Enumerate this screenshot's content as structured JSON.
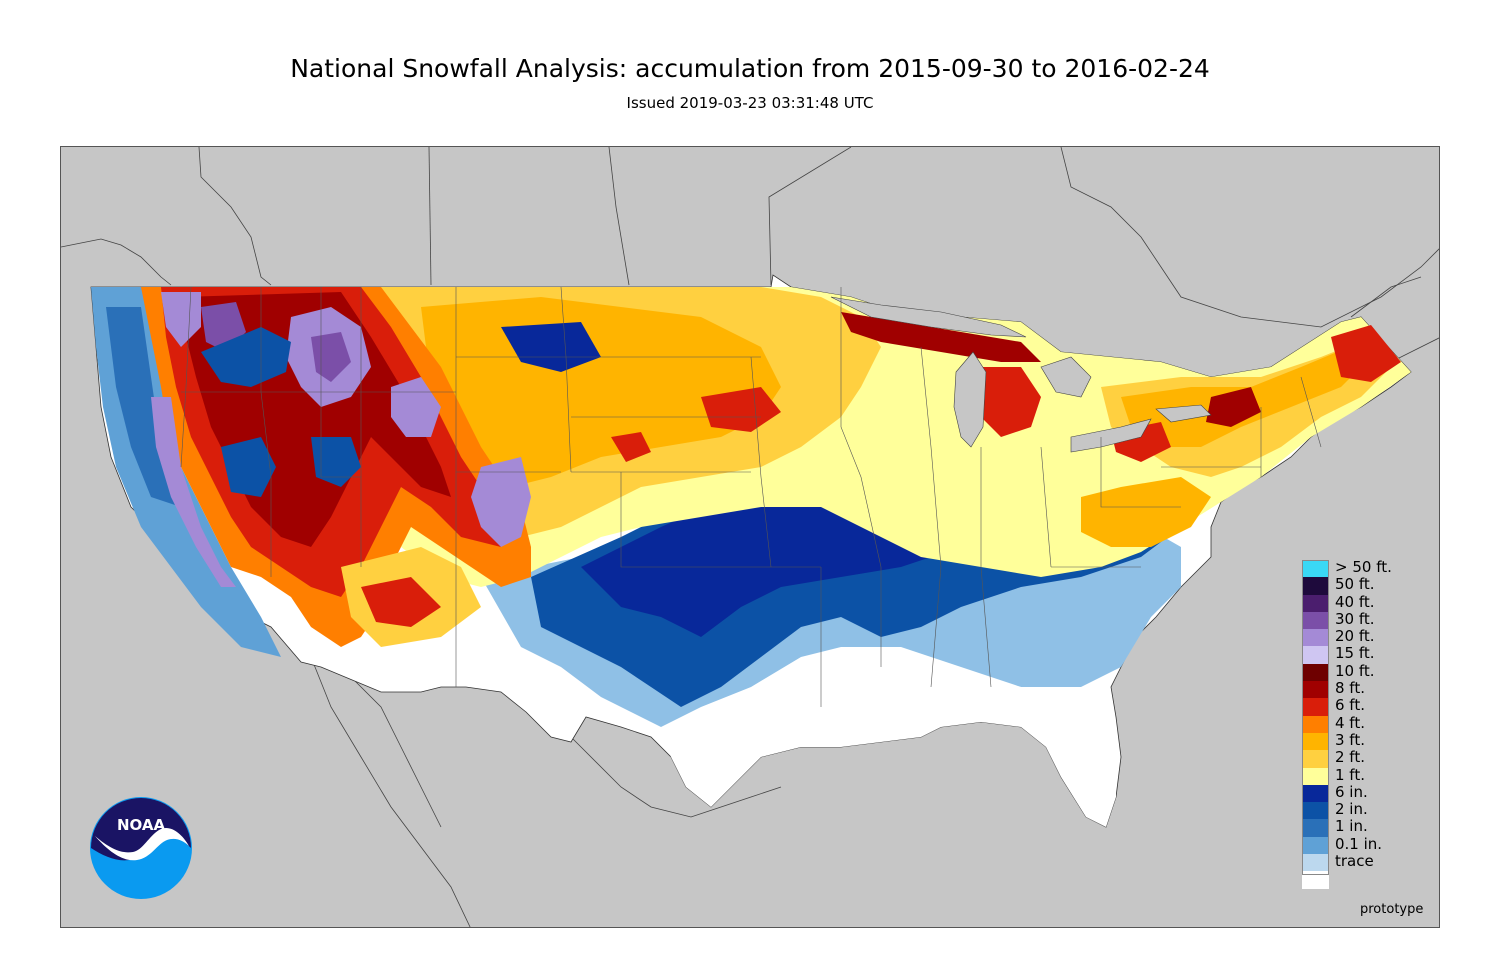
{
  "header": {
    "title": "National Snowfall Analysis: accumulation from 2015-09-30 to 2016-02-24",
    "subtitle": "Issued 2019-03-23 03:31:48 UTC"
  },
  "legend": {
    "items": [
      {
        "label": "> 50 ft.",
        "color": "#3ad8f5"
      },
      {
        "label": "50 ft.",
        "color": "#1e0a3c"
      },
      {
        "label": "40 ft.",
        "color": "#4b1e6e"
      },
      {
        "label": "30 ft.",
        "color": "#7b4fa8"
      },
      {
        "label": "20 ft.",
        "color": "#a48ad6"
      },
      {
        "label": "15 ft.",
        "color": "#cfc6f2"
      },
      {
        "label": "10 ft.",
        "color": "#6e0000"
      },
      {
        "label": "8 ft.",
        "color": "#a00000"
      },
      {
        "label": "6 ft.",
        "color": "#d91e0a"
      },
      {
        "label": "4 ft.",
        "color": "#ff7f00"
      },
      {
        "label": "3 ft.",
        "color": "#ffb400"
      },
      {
        "label": "2 ft.",
        "color": "#ffd040"
      },
      {
        "label": "1 ft.",
        "color": "#ffff9a"
      },
      {
        "label": "6 in.",
        "color": "#08289a"
      },
      {
        "label": "2 in.",
        "color": "#0c52a6"
      },
      {
        "label": "1 in.",
        "color": "#2a70b8"
      },
      {
        "label": "0.1 in.",
        "color": "#5fa1d6"
      },
      {
        "label": "trace",
        "color": "#bcd8ee"
      },
      {
        "label": "",
        "color": "#ffffff"
      }
    ]
  },
  "footer": {
    "prototype_label": "prototype",
    "logo_text": "NOAA"
  }
}
